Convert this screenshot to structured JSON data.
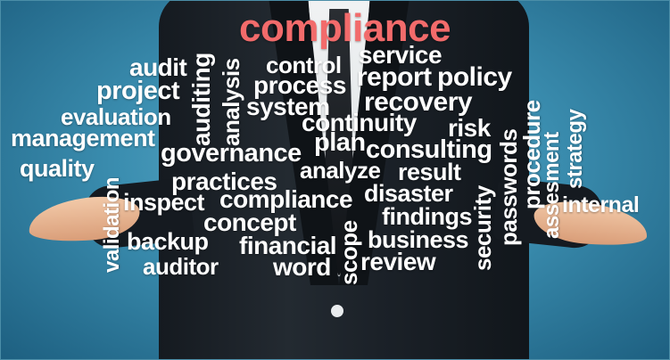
{
  "headline": "compliance",
  "words": {
    "service": "service",
    "control": "control",
    "report": "report",
    "policy": "policy",
    "audit": "audit",
    "analysis": "analysis",
    "process": "process",
    "project": "project",
    "auditing": "auditing",
    "recovery": "recovery",
    "system": "system",
    "evaluation": "evaluation",
    "continuity": "continuity",
    "risk": "risk",
    "procedure": "procedure",
    "strategy": "strategy",
    "management": "management",
    "plan": "plan",
    "consulting": "consulting",
    "passwords": "passwords",
    "governance": "governance",
    "quality": "quality",
    "analyze": "analyze",
    "result": "result",
    "security": "security",
    "assesment": "assesment",
    "practices": "practices",
    "disaster": "disaster",
    "validation": "validation",
    "inspect": "inspect",
    "compliance2": "compliance",
    "internal": "internal",
    "concept": "concept",
    "findings": "findings",
    "backup": "backup",
    "financial": "financial",
    "business": "business",
    "scope": "scope",
    "auditor": "auditor",
    "word": "word",
    "review": "review"
  }
}
